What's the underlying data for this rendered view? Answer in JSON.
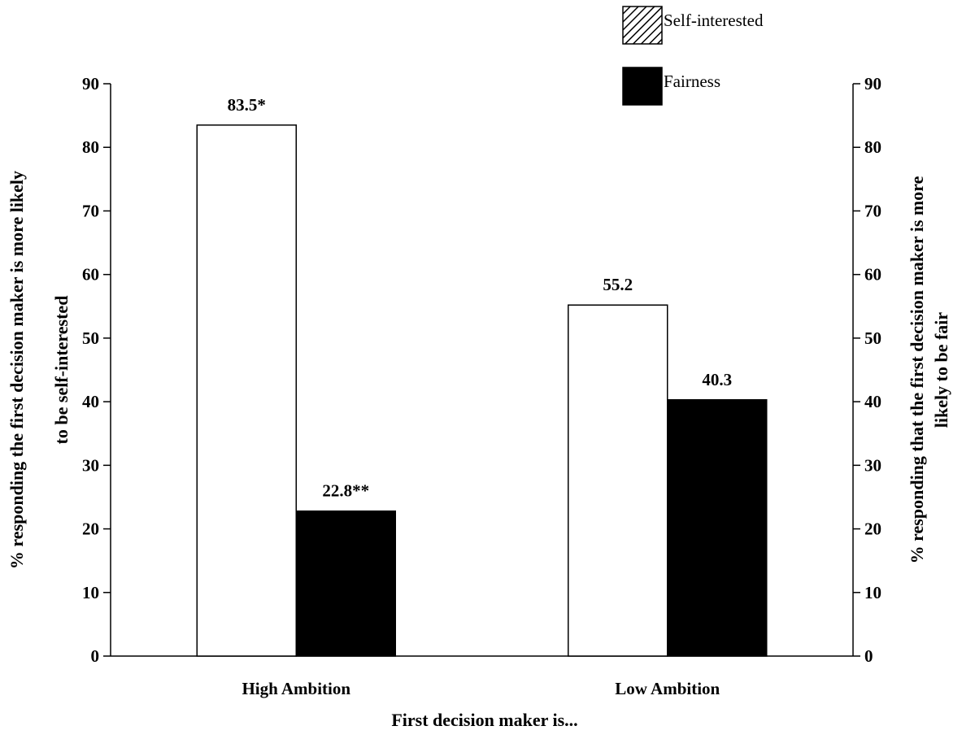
{
  "chart_data": {
    "type": "bar",
    "categories": [
      "High Ambition",
      "Low Ambition"
    ],
    "series": [
      {
        "name": "Self-interested",
        "values": [
          83.5,
          55.2
        ],
        "data_labels": [
          "83.5*",
          "55.2"
        ],
        "fill": "#ffffff",
        "legend_pattern": "hatch"
      },
      {
        "name": "Fairness",
        "values": [
          22.8,
          40.3
        ],
        "data_labels": [
          "22.8**",
          "40.3"
        ],
        "fill": "#000000",
        "legend_pattern": "solid"
      }
    ],
    "xlabel": "First decision maker is...",
    "ylabel_left": [
      "% responding the first decision maker is more likely",
      "to be self-interested"
    ],
    "ylabel_right": [
      "% responding that the first decision maker is more",
      "likely to be fair"
    ],
    "ylim": [
      0,
      90
    ],
    "yticks": [
      0,
      10,
      20,
      30,
      40,
      50,
      60,
      70,
      80,
      90
    ],
    "legend_position": "top-right",
    "grid": false
  }
}
